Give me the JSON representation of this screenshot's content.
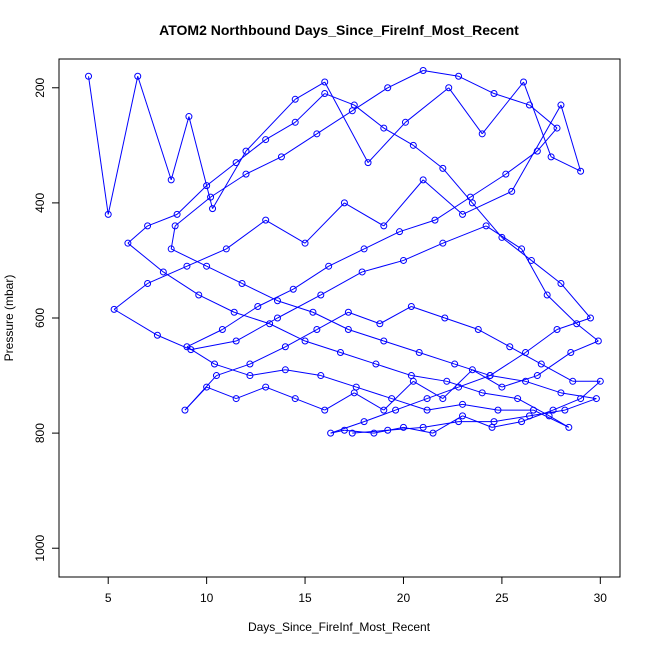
{
  "chart_data": {
    "type": "scatter",
    "title": "ATOM2 Northbound Days_Since_FireInf_Most_Recent",
    "xlabel": "Days_Since_FireInf_Most_Recent",
    "ylabel": "Pressure (mbar)",
    "xlim": [
      2.5,
      31
    ],
    "ylim": [
      1050,
      150
    ],
    "y_reversed": true,
    "xticks": [
      5,
      10,
      15,
      20,
      25,
      30
    ],
    "yticks": [
      200,
      400,
      600,
      800,
      1000
    ],
    "series_color": "#0000ff",
    "marker": "open-circle",
    "connected_by_lines": true,
    "series": [
      {
        "values_note_excluded": true,
        "points": [
          [
            4.0,
            180
          ],
          [
            5.0,
            420
          ],
          [
            6.5,
            180
          ],
          [
            8.2,
            360
          ],
          [
            9.1,
            250
          ],
          [
            10.3,
            410
          ],
          [
            12.0,
            310
          ],
          [
            14.5,
            220
          ],
          [
            16.0,
            190
          ],
          [
            18.2,
            330
          ],
          [
            20.1,
            260
          ],
          [
            22.3,
            200
          ],
          [
            24.0,
            280
          ],
          [
            26.1,
            190
          ],
          [
            27.5,
            320
          ],
          [
            29.0,
            345
          ],
          [
            28.0,
            230
          ],
          [
            25.5,
            380
          ],
          [
            23.0,
            420
          ],
          [
            21.0,
            360
          ],
          [
            19.0,
            440
          ],
          [
            17.0,
            400
          ],
          [
            15.0,
            470
          ],
          [
            13.0,
            430
          ],
          [
            11.0,
            480
          ],
          [
            9.0,
            510
          ],
          [
            7.0,
            540
          ],
          [
            5.3,
            585
          ],
          [
            7.5,
            630
          ],
          [
            9.2,
            655
          ],
          [
            11.5,
            640
          ],
          [
            13.6,
            600
          ],
          [
            15.8,
            560
          ],
          [
            17.9,
            520
          ],
          [
            20.0,
            500
          ],
          [
            22.0,
            470
          ],
          [
            24.2,
            440
          ],
          [
            26.0,
            480
          ],
          [
            27.3,
            560
          ],
          [
            28.8,
            610
          ],
          [
            29.9,
            640
          ],
          [
            28.5,
            660
          ],
          [
            26.8,
            700
          ],
          [
            25.0,
            720
          ],
          [
            23.5,
            690
          ],
          [
            22.0,
            740
          ],
          [
            20.5,
            710
          ],
          [
            19.0,
            760
          ],
          [
            17.5,
            730
          ],
          [
            16.0,
            760
          ],
          [
            14.5,
            740
          ],
          [
            13.0,
            720
          ],
          [
            11.5,
            740
          ],
          [
            10.0,
            720
          ],
          [
            8.9,
            760
          ],
          [
            10.5,
            700
          ],
          [
            12.2,
            680
          ],
          [
            14.0,
            650
          ],
          [
            15.6,
            620
          ],
          [
            17.2,
            590
          ],
          [
            18.8,
            610
          ],
          [
            20.4,
            580
          ],
          [
            22.1,
            600
          ],
          [
            23.8,
            620
          ],
          [
            25.4,
            650
          ],
          [
            27.0,
            680
          ],
          [
            28.6,
            710
          ],
          [
            30.0,
            710
          ],
          [
            29.0,
            740
          ],
          [
            27.6,
            760
          ],
          [
            26.0,
            780
          ],
          [
            24.5,
            790
          ],
          [
            23.0,
            770
          ],
          [
            21.5,
            800
          ],
          [
            20.0,
            790
          ],
          [
            18.5,
            800
          ],
          [
            17.0,
            795
          ],
          [
            16.3,
            800
          ],
          [
            18.0,
            780
          ],
          [
            19.6,
            760
          ],
          [
            21.2,
            740
          ],
          [
            22.8,
            720
          ],
          [
            24.4,
            700
          ],
          [
            26.2,
            660
          ],
          [
            27.8,
            620
          ],
          [
            29.5,
            600
          ],
          [
            28.0,
            540
          ],
          [
            26.5,
            500
          ],
          [
            25.0,
            460
          ],
          [
            23.5,
            400
          ],
          [
            22.0,
            340
          ],
          [
            20.5,
            300
          ],
          [
            19.0,
            270
          ],
          [
            17.5,
            230
          ],
          [
            16.0,
            210
          ],
          [
            14.5,
            260
          ],
          [
            13.0,
            290
          ],
          [
            11.5,
            330
          ],
          [
            10.0,
            370
          ],
          [
            8.5,
            420
          ],
          [
            7.0,
            440
          ],
          [
            6.0,
            470
          ],
          [
            7.8,
            520
          ],
          [
            9.6,
            560
          ],
          [
            11.4,
            590
          ],
          [
            13.2,
            610
          ],
          [
            15.0,
            640
          ],
          [
            16.8,
            660
          ],
          [
            18.6,
            680
          ],
          [
            20.4,
            700
          ],
          [
            22.2,
            710
          ],
          [
            24.0,
            730
          ],
          [
            25.8,
            740
          ],
          [
            27.4,
            770
          ],
          [
            28.4,
            790
          ],
          [
            26.6,
            760
          ],
          [
            24.8,
            760
          ],
          [
            23.0,
            750
          ],
          [
            21.2,
            760
          ],
          [
            19.4,
            740
          ],
          [
            17.6,
            720
          ],
          [
            15.8,
            700
          ],
          [
            14.0,
            690
          ],
          [
            12.2,
            700
          ],
          [
            10.4,
            680
          ],
          [
            9.0,
            650
          ],
          [
            10.8,
            620
          ],
          [
            12.6,
            580
          ],
          [
            14.4,
            550
          ],
          [
            16.2,
            510
          ],
          [
            18.0,
            480
          ],
          [
            19.8,
            450
          ],
          [
            21.6,
            430
          ],
          [
            23.4,
            390
          ],
          [
            25.2,
            350
          ],
          [
            26.8,
            310
          ],
          [
            27.8,
            270
          ],
          [
            26.4,
            230
          ],
          [
            24.6,
            210
          ],
          [
            22.8,
            180
          ],
          [
            21.0,
            170
          ],
          [
            19.2,
            200
          ],
          [
            17.4,
            240
          ],
          [
            15.6,
            280
          ],
          [
            13.8,
            320
          ],
          [
            12.0,
            350
          ],
          [
            10.2,
            390
          ],
          [
            8.4,
            440
          ],
          [
            8.2,
            480
          ],
          [
            10.0,
            510
          ],
          [
            11.8,
            540
          ],
          [
            13.6,
            570
          ],
          [
            15.4,
            590
          ],
          [
            17.2,
            620
          ],
          [
            19.0,
            640
          ],
          [
            20.8,
            660
          ],
          [
            22.6,
            680
          ],
          [
            24.4,
            700
          ],
          [
            26.2,
            710
          ],
          [
            28.0,
            730
          ],
          [
            29.8,
            740
          ],
          [
            28.2,
            760
          ],
          [
            26.4,
            770
          ],
          [
            24.6,
            780
          ],
          [
            22.8,
            780
          ],
          [
            21.0,
            790
          ],
          [
            19.2,
            795
          ],
          [
            17.4,
            800
          ]
        ]
      }
    ]
  }
}
